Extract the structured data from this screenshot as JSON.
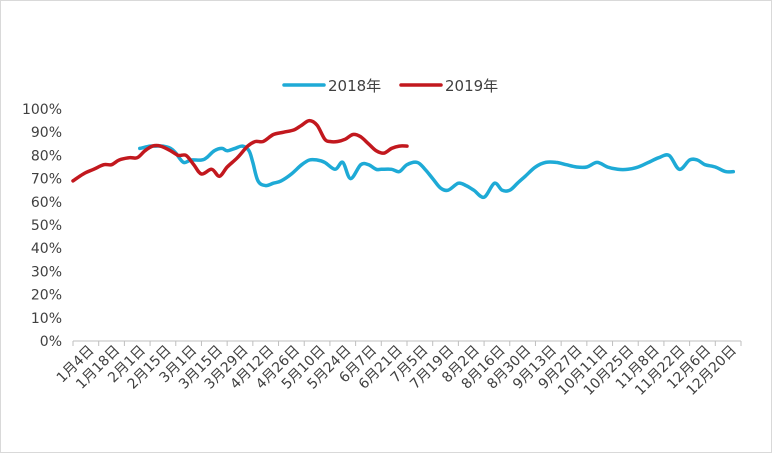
{
  "chart_data": {
    "type": "line",
    "title": "",
    "xlabel": "",
    "ylabel": "",
    "ylim": [
      0,
      100
    ],
    "y_ticks": [
      "0%",
      "10%",
      "20%",
      "30%",
      "40%",
      "50%",
      "60%",
      "70%",
      "80%",
      "90%",
      "100%"
    ],
    "grid": false,
    "legend_position": "top-center",
    "categories": [
      "1月4日",
      "1月18日",
      "2月1日",
      "2月15日",
      "3月1日",
      "3月15日",
      "3月29日",
      "4月12日",
      "4月26日",
      "5月10日",
      "5月24日",
      "6月7日",
      "6月21日",
      "7月5日",
      "7月19日",
      "8月2日",
      "8月16日",
      "8月30日",
      "9月13日",
      "9月27日",
      "10月11日",
      "10月25日",
      "11月8日",
      "11月22日",
      "12月6日",
      "12月20日"
    ],
    "series": [
      {
        "name": "2018年",
        "color": "#1eaad6",
        "x": [
          2.6,
          3.0,
          3.2,
          3.5,
          3.8,
          4.0,
          4.3,
          4.6,
          5.0,
          5.2,
          5.5,
          5.8,
          6.0,
          6.3,
          6.6,
          6.85,
          7.0,
          7.2,
          7.5,
          7.8,
          8.1,
          8.5,
          8.9,
          9.2,
          9.5,
          9.8,
          10.2,
          10.5,
          10.8,
          11.2,
          11.5,
          11.8,
          12.0,
          12.4,
          12.7,
          13.0,
          13.4,
          13.7,
          14.0,
          14.3,
          14.6,
          15.0,
          15.3,
          15.6,
          16.0,
          16.4,
          16.7,
          17.0,
          17.3,
          17.6,
          18.0,
          18.4,
          18.8,
          19.2,
          19.6,
          20.0,
          20.4,
          20.8,
          21.2,
          21.6,
          22.0,
          22.4,
          22.8,
          23.2,
          23.6,
          24.0,
          24.3,
          24.6,
          25.0,
          25.4,
          25.7
        ],
        "values": [
          83,
          84,
          84,
          84,
          83,
          81,
          77,
          78,
          78,
          79,
          82,
          83,
          82,
          83,
          84,
          82,
          77,
          69,
          67,
          68,
          69,
          72,
          76,
          78,
          78,
          77,
          74,
          77,
          70,
          76,
          76,
          74,
          74,
          74,
          73,
          76,
          77,
          74,
          70,
          66,
          65,
          68,
          67,
          65,
          62,
          68,
          65,
          65,
          68,
          71,
          75,
          77,
          77,
          76,
          75,
          75,
          77,
          75,
          74,
          74,
          75,
          77,
          79,
          80,
          74,
          78,
          78,
          76,
          75,
          73,
          73
        ]
      },
      {
        "name": "2019年",
        "color": "#c2181e",
        "x": [
          0.0,
          0.4,
          0.8,
          1.2,
          1.5,
          1.8,
          2.2,
          2.5,
          2.8,
          3.1,
          3.4,
          3.8,
          4.1,
          4.4,
          4.7,
          5.0,
          5.4,
          5.7,
          6.0,
          6.4,
          6.8,
          7.1,
          7.4,
          7.8,
          8.2,
          8.6,
          8.9,
          9.2,
          9.5,
          9.8,
          10.0,
          10.3,
          10.6,
          10.9,
          11.2,
          11.5,
          11.8,
          12.1,
          12.4,
          12.7,
          13.0
        ],
        "values": [
          69,
          72,
          74,
          76,
          76,
          78,
          79,
          79,
          82,
          84,
          84,
          82,
          80,
          80,
          76,
          72,
          74,
          71,
          75,
          79,
          84,
          86,
          86,
          89,
          90,
          91,
          93,
          95,
          93,
          87,
          86,
          86,
          87,
          89,
          88,
          85,
          82,
          81,
          83,
          84,
          84
        ]
      }
    ]
  }
}
